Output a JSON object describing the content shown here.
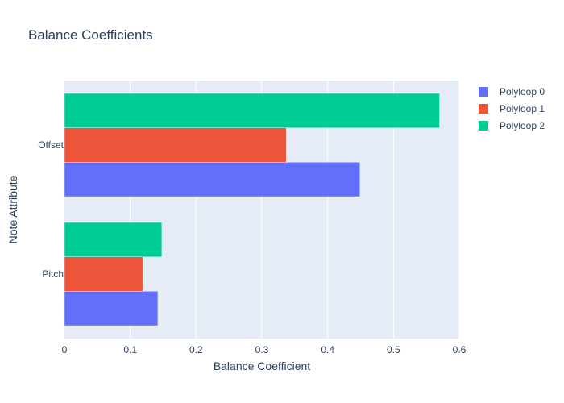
{
  "chart_data": {
    "type": "bar",
    "orientation": "horizontal",
    "title": "Balance Coefficients",
    "xlabel": "Balance Coefficient",
    "ylabel": "Note Attribute",
    "categories": [
      "Pitch",
      "Offset"
    ],
    "xlim": [
      0,
      0.6
    ],
    "xticks": [
      "0",
      "0.1",
      "0.2",
      "0.3",
      "0.4",
      "0.5",
      "0.6"
    ],
    "grid": true,
    "legend_position": "top-right",
    "series": [
      {
        "name": "Polyloop 0",
        "color": "#636efa",
        "values": [
          0.142,
          0.449
        ]
      },
      {
        "name": "Polyloop 1",
        "color": "#ef553b",
        "values": [
          0.119,
          0.337
        ]
      },
      {
        "name": "Polyloop 2",
        "color": "#00cc96",
        "values": [
          0.148,
          0.57
        ]
      }
    ]
  }
}
